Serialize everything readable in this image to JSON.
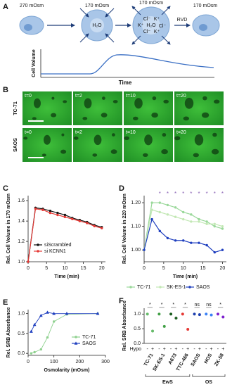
{
  "panel_a": {
    "label": "A",
    "osmolarity": [
      "270 mOsm",
      "170 mOsm",
      "170 mOsm",
      "170 mOsm"
    ],
    "water": "H₂O",
    "ions": [
      "Cl⁻",
      "K⁺",
      "K⁺",
      "H₂O",
      "Cl⁻",
      "Cl⁻",
      "K⁺"
    ],
    "process": "RVD",
    "y_label": "Cell Volume",
    "x_label": "Time"
  },
  "panel_b": {
    "label": "B",
    "rows": [
      "TC-71",
      "SAOS"
    ],
    "times": [
      "t=0",
      "t=2",
      "t=10",
      "t=20"
    ]
  },
  "chart_data": [
    {
      "panel_label": "C",
      "type": "line",
      "x_label": "Time (min)",
      "y_label": "Rel. Cell Volume in 170 mOsm",
      "x": [
        0,
        2,
        4,
        6,
        8,
        10,
        12,
        14,
        16,
        18,
        20
      ],
      "series": [
        {
          "name": "siScrambled",
          "color": "#111111",
          "values": [
            1.0,
            1.53,
            1.52,
            1.5,
            1.48,
            1.46,
            1.43,
            1.41,
            1.39,
            1.36,
            1.34
          ]
        },
        {
          "name": "si KCNN1",
          "color": "#e53935",
          "values": [
            1.0,
            1.52,
            1.51,
            1.48,
            1.46,
            1.44,
            1.42,
            1.4,
            1.38,
            1.35,
            1.33
          ]
        }
      ],
      "xlim": [
        0,
        21
      ],
      "ylim": [
        1.0,
        1.65
      ],
      "xticks": [
        0,
        5,
        10,
        15,
        20
      ],
      "yticks": [
        {
          "value": 1.0,
          "label": "1.0"
        },
        1.2,
        1.4,
        1.6
      ],
      "legend": "lower left"
    },
    {
      "panel_label": "D",
      "type": "line",
      "x_label": "Time (min)",
      "y_label": "Rel. Cell Volume in 220 mOsm",
      "x": [
        0,
        2,
        4,
        6,
        8,
        10,
        12,
        14,
        16,
        18,
        20
      ],
      "series": [
        {
          "name": "TC-71",
          "color": "#9ad89a",
          "values": [
            1.0,
            1.2,
            1.2,
            1.19,
            1.18,
            1.16,
            1.15,
            1.13,
            1.12,
            1.1,
            1.09
          ]
        },
        {
          "name": "SK-ES-1",
          "color": "#c3e8b5",
          "values": [
            1.0,
            1.17,
            1.16,
            1.15,
            1.14,
            1.13,
            1.12,
            1.12,
            1.11,
            1.11,
            1.1
          ]
        },
        {
          "name": "SAOS",
          "color": "#1f3fbf",
          "values": [
            1.0,
            1.13,
            1.08,
            1.05,
            1.04,
            1.04,
            1.03,
            1.03,
            1.02,
            0.99,
            1.0
          ]
        }
      ],
      "xlim": [
        0,
        21
      ],
      "ylim": [
        0.95,
        1.23
      ],
      "xticks": [
        0,
        5,
        10,
        15,
        20
      ],
      "yticks": [
        {
          "value": 1.0,
          "label": "1.00"
        },
        {
          "value": 1.1,
          "label": "1.10"
        },
        {
          "value": 1.2,
          "label": "1.20"
        }
      ],
      "annotations": [
        {
          "x": 4,
          "text": "*"
        },
        {
          "x": 6,
          "text": "*"
        },
        {
          "x": 8,
          "text": "*"
        },
        {
          "x": 10,
          "text": "*"
        },
        {
          "x": 12,
          "text": "*"
        },
        {
          "x": 14,
          "text": "*"
        },
        {
          "x": 16,
          "text": "*"
        },
        {
          "x": 18,
          "text": "*"
        },
        {
          "x": 20,
          "text": "*"
        }
      ],
      "legend": "bottom"
    },
    {
      "panel_label": "E",
      "type": "scatter",
      "x_label": "Osmolarity (mOsm)",
      "y_label": "Rel. SRB Absorbance",
      "x": [
        12,
        25,
        50,
        75,
        100,
        150,
        270
      ],
      "series": [
        {
          "name": "TC-71",
          "color": "#8fd18f",
          "marker": "circle",
          "values": [
            0.0,
            0.03,
            0.1,
            0.4,
            0.8,
            0.98,
            1.0
          ]
        },
        {
          "name": "SAOS",
          "color": "#1f3fbf",
          "marker": "triangle",
          "values": [
            0.55,
            0.72,
            0.95,
            1.03,
            1.0,
            1.0,
            1.0
          ]
        }
      ],
      "xlim": [
        0,
        300
      ],
      "ylim": [
        -0.05,
        1.1
      ],
      "xticks": [
        0,
        100,
        200,
        300
      ],
      "yticks": [
        {
          "value": 0,
          "label": "0.0"
        },
        {
          "value": 0.5,
          "label": "0.5"
        },
        {
          "value": 1,
          "label": "1.0"
        }
      ],
      "legend": "lower right"
    },
    {
      "panel_label": "F",
      "type": "dot",
      "y_label": "Rel. SRB Absorbance",
      "categories": [
        "TC-71",
        "SK-ES-1",
        "A673",
        "TTC-466",
        "SAOS",
        "HOS",
        "ZK-58"
      ],
      "colors": [
        "#66bb6a",
        "#43a047",
        "#1b5e20",
        "#e53935",
        "#1e40af",
        "#3b82f6",
        "#7e22ce"
      ],
      "hypo_label": "Hypo",
      "conditions": [
        "-",
        "+"
      ],
      "series": [
        {
          "name": "-",
          "values": [
            1.0,
            1.0,
            1.0,
            1.0,
            1.0,
            1.0,
            1.0
          ]
        },
        {
          "name": "+",
          "values": [
            0.42,
            0.58,
            0.86,
            0.48,
            0.98,
            0.97,
            0.9
          ]
        }
      ],
      "significance": [
        "*",
        "*",
        "*",
        "*",
        "ns",
        "ns",
        "*"
      ],
      "groups": [
        {
          "label": "EwS",
          "members": [
            "TC-71",
            "SK-ES-1",
            "A673",
            "TTC-466"
          ]
        },
        {
          "label": "OS",
          "members": [
            "SAOS",
            "HOS",
            "ZK-58"
          ]
        }
      ],
      "ylim": [
        0,
        1.2
      ],
      "yticks": [
        {
          "value": 0,
          "label": "0.0"
        },
        {
          "value": 0.5,
          "label": "0.5"
        },
        {
          "value": 1,
          "label": "1.0"
        }
      ]
    }
  ]
}
